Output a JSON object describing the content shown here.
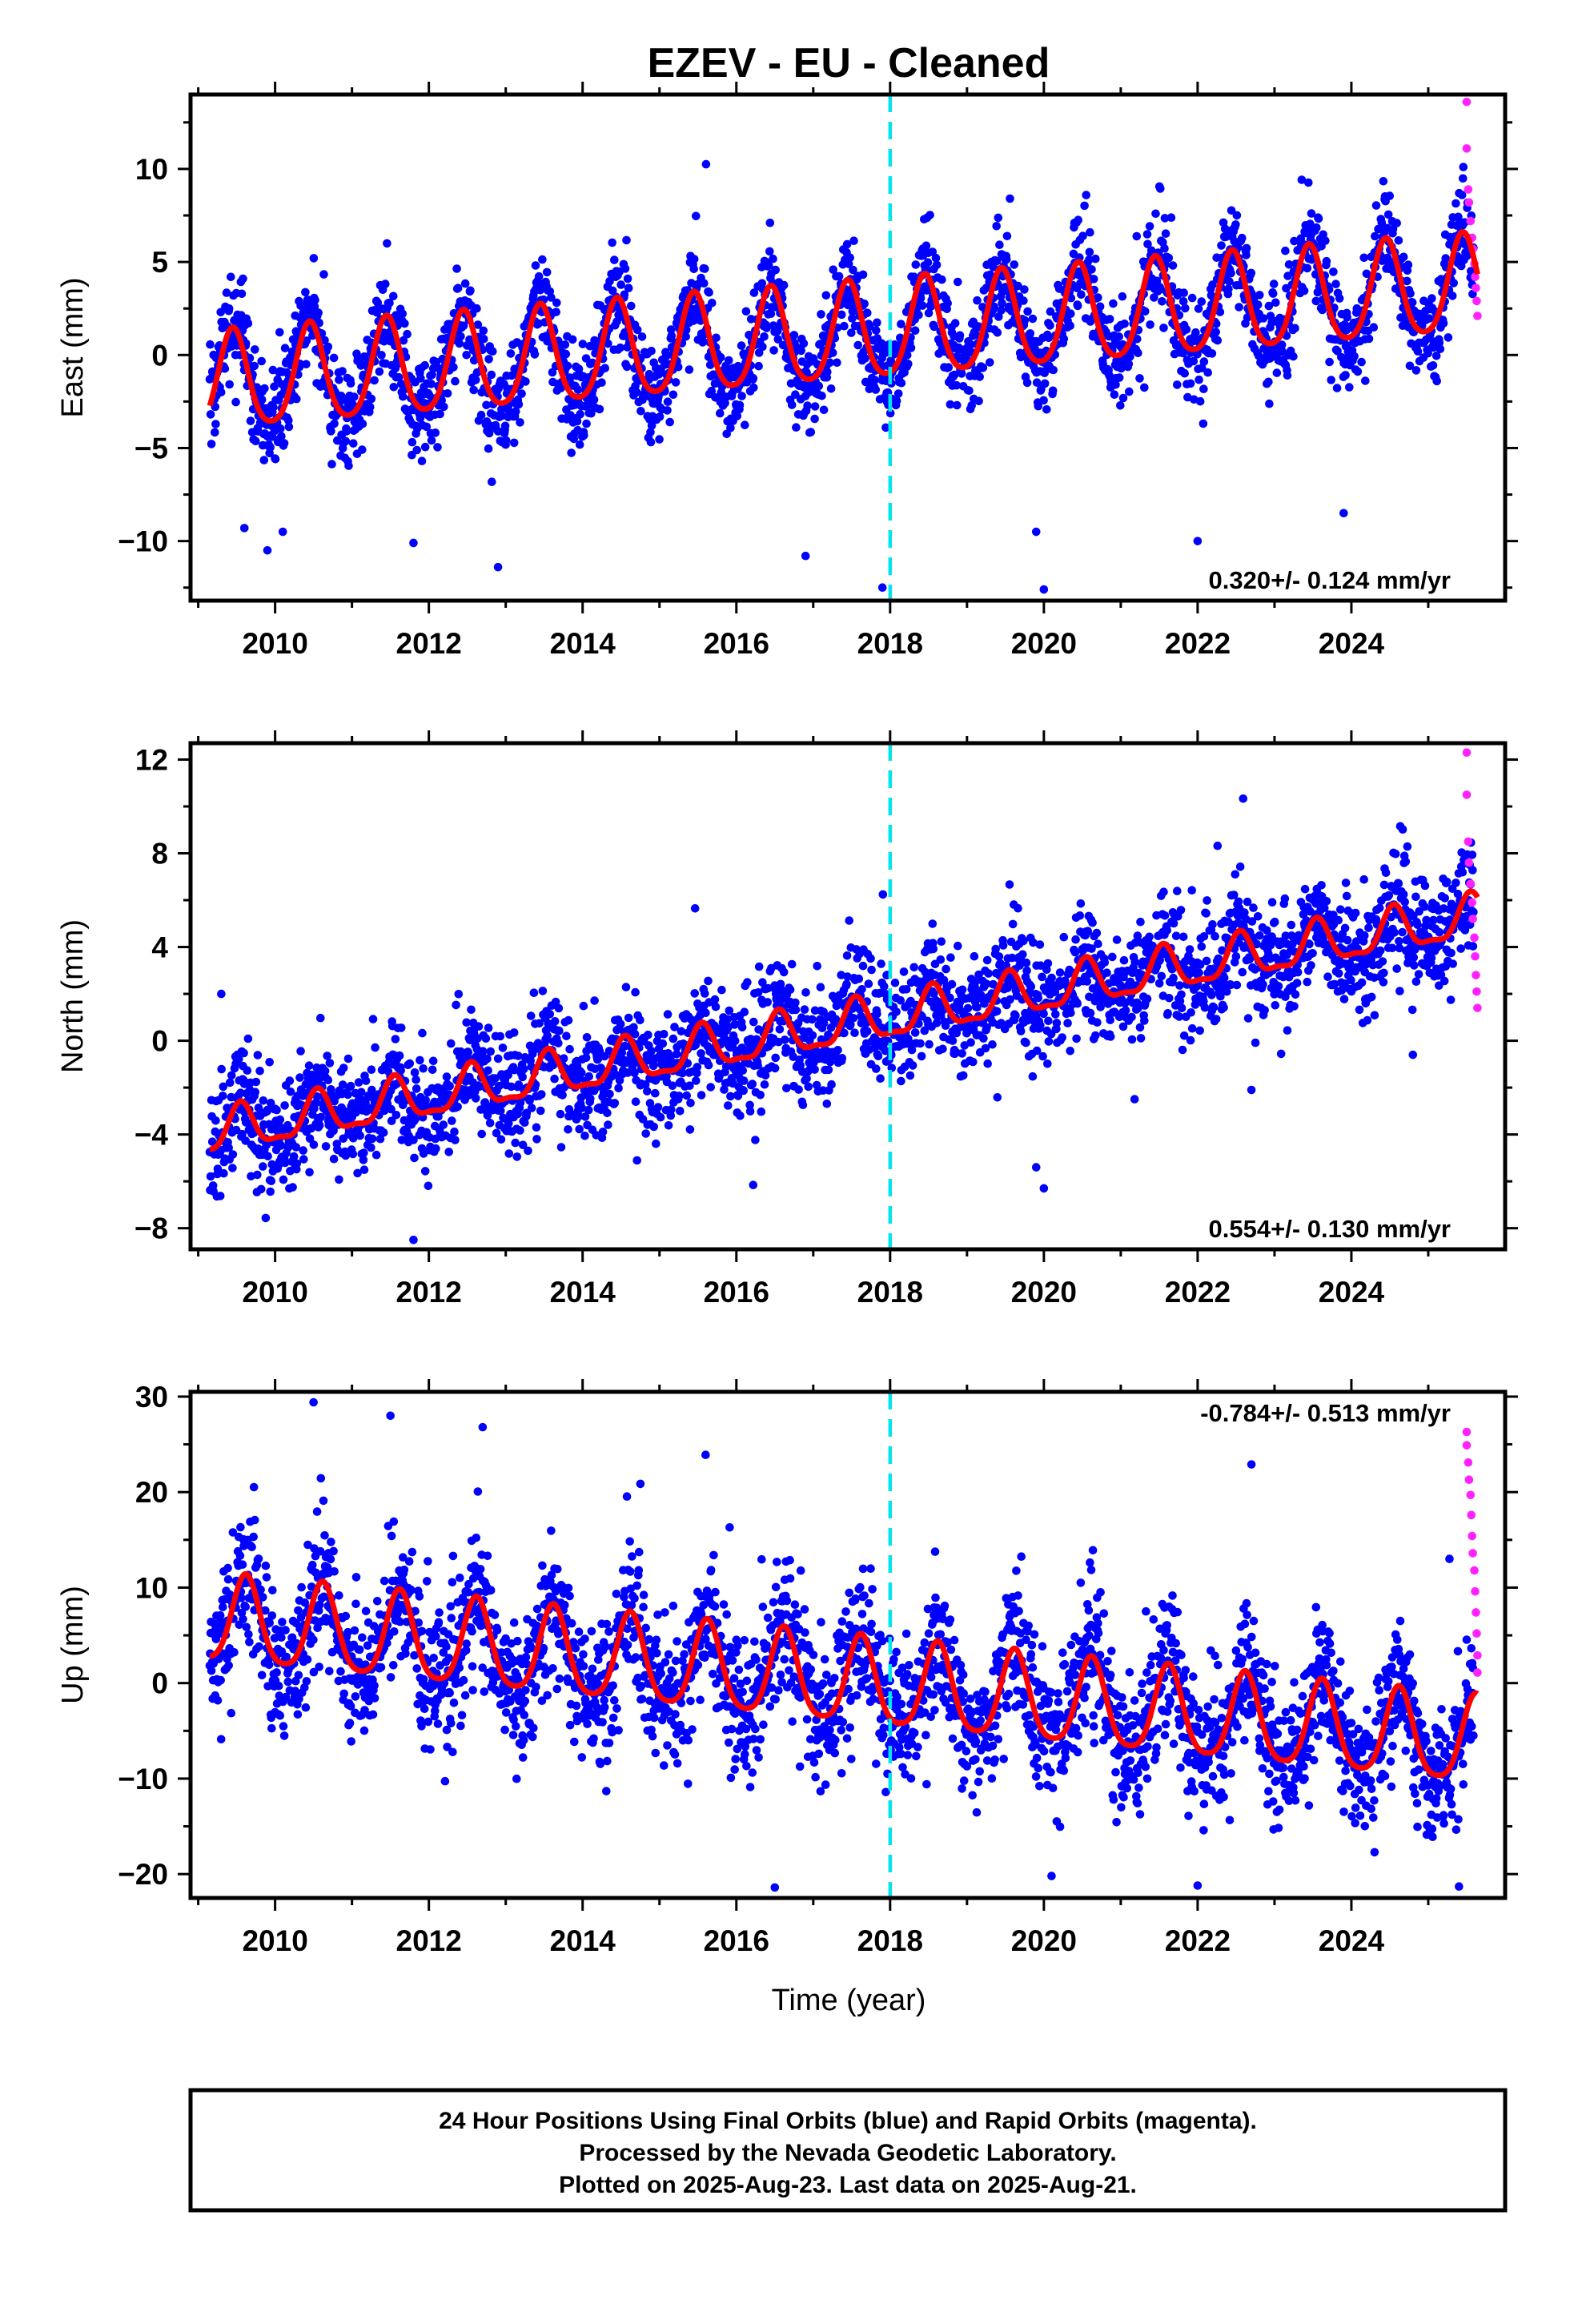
{
  "title": "EZEV  - EU - Cleaned",
  "xlabel": "Time (year)",
  "footer": {
    "line1": "24 Hour Positions Using Final Orbits (blue) and Rapid Orbits (magenta).",
    "line2": "Processed by the Nevada Geodetic Laboratory.",
    "line3": "Plotted on 2025-Aug-23. Last data on 2025-Aug-21."
  },
  "colors": {
    "final": "#0000ff",
    "rapid": "#ff22ff",
    "model": "#ff0000",
    "break": "#00e5ee"
  },
  "chart_data": [
    {
      "type": "scatter",
      "ylabel": "East (mm)",
      "rate_text": "0.320+/- 0.124 mm/yr",
      "xlim": [
        2008.9,
        2026.0
      ],
      "ylim": [
        -13.2,
        14.0
      ],
      "x_ticks": [
        2010,
        2012,
        2014,
        2016,
        2018,
        2020,
        2022,
        2024
      ],
      "y_ticks": [
        -10,
        -5,
        0,
        5,
        10
      ],
      "equipment_change": 2018.0,
      "data_range": [
        2009.15,
        2025.64
      ],
      "model": {
        "offset_mm": -1.6,
        "slope_mm_per_yr": 0.32,
        "t0": 2009.15,
        "annual_amp_mm": 2.6,
        "annual_peak": 2009.45,
        "semiannual_amp_mm": 0.4
      },
      "scatter_sd_mm": 1.3,
      "outliers": [
        [
          2009.6,
          -9.3
        ],
        [
          2009.9,
          -10.5
        ],
        [
          2010.1,
          -9.5
        ],
        [
          2011.8,
          -10.1
        ],
        [
          2012.9,
          -11.4
        ],
        [
          2016.9,
          -10.8
        ],
        [
          2017.9,
          -12.5
        ],
        [
          2020.0,
          -12.6
        ],
        [
          2019.9,
          -9.5
        ],
        [
          2022.0,
          -10.0
        ],
        [
          2023.9,
          -8.5
        ]
      ],
      "rapid_points": [
        [
          2025.5,
          13.6
        ],
        [
          2025.5,
          11.1
        ],
        [
          2025.52,
          8.9
        ],
        [
          2025.53,
          8.2
        ],
        [
          2025.55,
          7.2
        ],
        [
          2025.57,
          6.3
        ],
        [
          2025.58,
          5.7
        ],
        [
          2025.6,
          4.9
        ],
        [
          2025.61,
          4.2
        ],
        [
          2025.62,
          3.6
        ],
        [
          2025.63,
          2.9
        ],
        [
          2025.64,
          2.1
        ]
      ]
    },
    {
      "type": "scatter",
      "ylabel": "North (mm)",
      "rate_text": "0.554+/- 0.130 mm/yr",
      "xlim": [
        2008.9,
        2026.0
      ],
      "ylim": [
        -8.9,
        12.7
      ],
      "x_ticks": [
        2010,
        2012,
        2014,
        2016,
        2018,
        2020,
        2022,
        2024
      ],
      "y_ticks": [
        -8,
        -4,
        0,
        4,
        8,
        12
      ],
      "equipment_change": 2018.0,
      "data_range": [
        2009.15,
        2025.64
      ],
      "model": {
        "offset_mm": -4.0,
        "slope_mm_per_yr": 0.56,
        "t0": 2009.15,
        "annual_amp_mm": 0.9,
        "annual_peak": 2009.55,
        "semiannual_amp_mm": 0.3
      },
      "scatter_sd_mm": 1.2,
      "outliers": [
        [
          2009.3,
          2.0
        ],
        [
          2011.8,
          -8.5
        ],
        [
          2019.9,
          -5.4
        ],
        [
          2020.0,
          -6.3
        ],
        [
          2022.7,
          -2.1
        ],
        [
          2024.8,
          -0.6
        ]
      ],
      "rapid_points": [
        [
          2025.5,
          12.3
        ],
        [
          2025.5,
          10.5
        ],
        [
          2025.52,
          8.5
        ],
        [
          2025.53,
          7.6
        ],
        [
          2025.55,
          6.7
        ],
        [
          2025.57,
          5.9
        ],
        [
          2025.58,
          5.2
        ],
        [
          2025.6,
          4.4
        ],
        [
          2025.61,
          3.6
        ],
        [
          2025.62,
          2.8
        ],
        [
          2025.63,
          2.1
        ],
        [
          2025.64,
          1.4
        ]
      ]
    },
    {
      "type": "scatter",
      "ylabel": "Up (mm)",
      "rate_text": "-0.784+/- 0.513 mm/yr",
      "xlim": [
        2008.9,
        2026.0
      ],
      "ylim": [
        -22.5,
        30.5
      ],
      "x_ticks": [
        2010,
        2012,
        2014,
        2016,
        2018,
        2020,
        2022,
        2024
      ],
      "y_ticks": [
        -20,
        -10,
        0,
        10,
        20,
        30
      ],
      "equipment_change": 2018.0,
      "data_range": [
        2009.15,
        2025.64
      ],
      "model": {
        "offset_mm": 6.5,
        "slope_mm_per_yr": -0.78,
        "t0": 2009.15,
        "annual_amp_mm": 4.5,
        "annual_peak": 2009.62,
        "semiannual_amp_mm": 0.8
      },
      "scatter_sd_mm": 3.6,
      "outliers": [
        [
          2010.5,
          29.4
        ],
        [
          2011.5,
          28.0
        ],
        [
          2012.7,
          26.8
        ],
        [
          2015.6,
          23.9
        ],
        [
          2022.7,
          22.9
        ],
        [
          2016.5,
          -21.4
        ],
        [
          2022.0,
          -21.2
        ],
        [
          2025.4,
          -21.3
        ],
        [
          2020.1,
          -20.2
        ]
      ],
      "rapid_points": [
        [
          2025.5,
          26.3
        ],
        [
          2025.5,
          24.9
        ],
        [
          2025.52,
          23.1
        ],
        [
          2025.53,
          21.3
        ],
        [
          2025.55,
          19.7
        ],
        [
          2025.56,
          17.6
        ],
        [
          2025.57,
          15.4
        ],
        [
          2025.58,
          13.6
        ],
        [
          2025.6,
          11.8
        ],
        [
          2025.61,
          9.6
        ],
        [
          2025.62,
          7.4
        ],
        [
          2025.63,
          5.2
        ],
        [
          2025.64,
          2.9
        ],
        [
          2025.64,
          1.1
        ]
      ]
    }
  ]
}
